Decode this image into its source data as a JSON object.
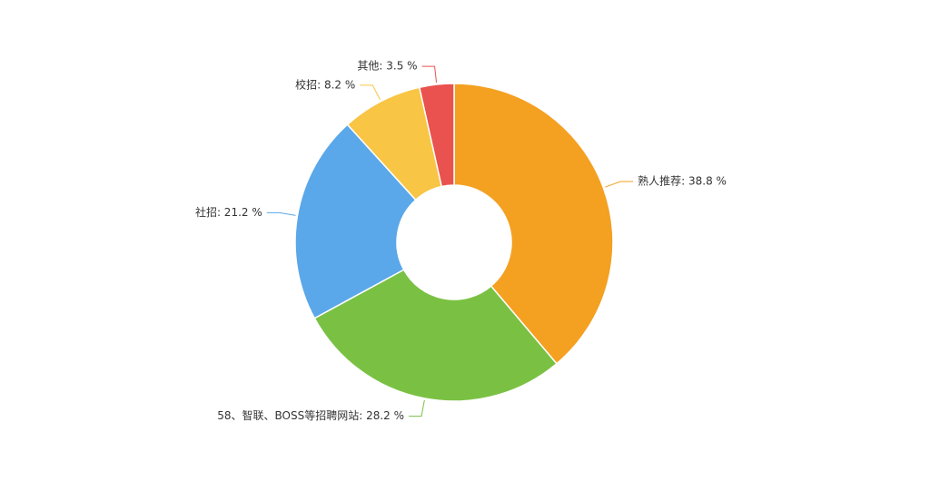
{
  "chart_data": {
    "type": "donut",
    "labels": [
      "熟人推荐: 38.8 %",
      "58、智联、BOSS等招聘网站: 28.2 %",
      "社招: 21.2 %",
      "校招: 8.2 %",
      "其他: 3.5 %"
    ],
    "values": [
      38.8,
      28.2,
      21.2,
      8.2,
      3.5
    ],
    "colors": [
      "#f4a021",
      "#7ac143",
      "#5aa7e9",
      "#f8c544",
      "#e9524f"
    ]
  }
}
